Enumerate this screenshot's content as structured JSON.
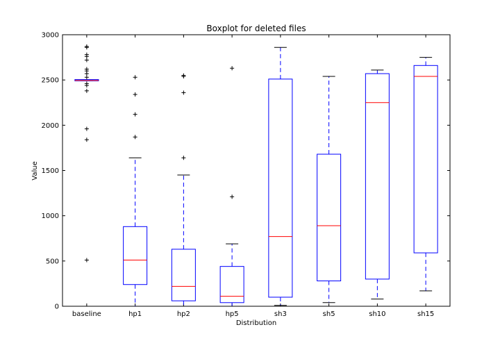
{
  "chart_data": {
    "type": "boxplot",
    "title": "Boxplot for deleted files",
    "xlabel": "Distribution",
    "ylabel": "Value",
    "ylim": [
      0,
      3000
    ],
    "yticks": [
      0,
      500,
      1000,
      1500,
      2000,
      2500,
      3000
    ],
    "grid": false,
    "colors": {
      "box": "#0000ff",
      "median": "#ff0000",
      "whisker": "#0000ff",
      "cap": "#000000",
      "flier": "#000000"
    },
    "categories": [
      "baseline",
      "hp1",
      "hp2",
      "hp5",
      "sh3",
      "sh5",
      "sh10",
      "sh15"
    ],
    "boxes": [
      {
        "label": "baseline",
        "whislo": 2490,
        "q1": 2490,
        "med": 2495,
        "q3": 2505,
        "whishi": 2505,
        "fliers": [
          2870,
          2860,
          2780,
          2760,
          2720,
          2620,
          2600,
          2570,
          2530,
          2460,
          2440,
          2380,
          1960,
          1840,
          510
        ]
      },
      {
        "label": "hp1",
        "whislo": 0,
        "q1": 240,
        "med": 510,
        "q3": 880,
        "whishi": 1640,
        "fliers": [
          1870,
          2120,
          2340,
          2530
        ]
      },
      {
        "label": "hp2",
        "whislo": 0,
        "q1": 60,
        "med": 220,
        "q3": 630,
        "whishi": 1450,
        "fliers": [
          1640,
          2360,
          2540,
          2550
        ]
      },
      {
        "label": "hp5",
        "whislo": 0,
        "q1": 40,
        "med": 110,
        "q3": 440,
        "whishi": 690,
        "fliers": [
          1210,
          2630
        ]
      },
      {
        "label": "sh3",
        "whislo": 10,
        "q1": 100,
        "med": 770,
        "q3": 2510,
        "whishi": 2860,
        "fliers": []
      },
      {
        "label": "sh5",
        "whislo": 40,
        "q1": 280,
        "med": 890,
        "q3": 1680,
        "whishi": 2540,
        "fliers": []
      },
      {
        "label": "sh10",
        "whislo": 80,
        "q1": 300,
        "med": 2250,
        "q3": 2570,
        "whishi": 2610,
        "fliers": []
      },
      {
        "label": "sh15",
        "whislo": 170,
        "q1": 590,
        "med": 2540,
        "q3": 2660,
        "whishi": 2750,
        "fliers": []
      }
    ]
  }
}
